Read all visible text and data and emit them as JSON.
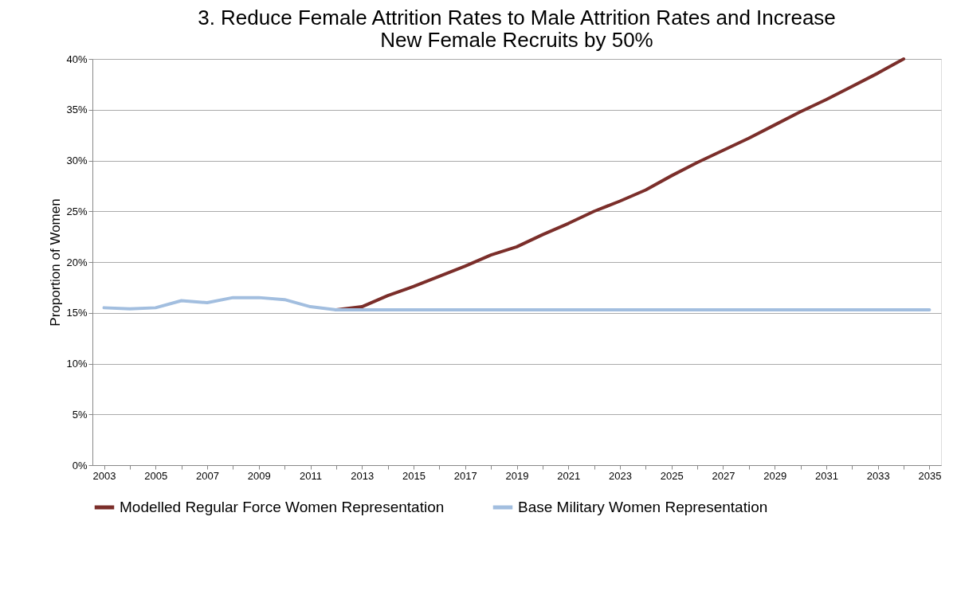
{
  "chart_data": {
    "type": "line",
    "title": "3. Reduce Female Attrition Rates to Male Attrition Rates and Increase\nNew Female Recruits by 50%",
    "ylabel": "Proportion of Women",
    "categories": [
      "2003",
      null,
      "2005",
      null,
      "2007",
      null,
      "2009",
      null,
      "2011",
      null,
      "2013",
      null,
      "2015",
      null,
      "2017",
      null,
      "2019",
      null,
      "2021",
      null,
      "2023",
      null,
      "2025",
      null,
      "2027",
      null,
      "2029",
      null,
      "2031",
      null,
      "2033",
      null,
      "2035"
    ],
    "series": [
      {
        "name": "Modelled Regular Force Women Representation",
        "color": "#7b2e2a",
        "values": [
          null,
          null,
          null,
          null,
          null,
          null,
          null,
          null,
          null,
          15.3,
          15.6,
          16.7,
          17.6,
          18.6,
          19.6,
          20.7,
          21.5,
          22.7,
          23.8,
          25.0,
          26.0,
          27.1,
          28.5,
          29.8,
          31.0,
          32.2,
          33.5,
          34.8,
          36.0,
          37.3,
          38.6,
          40.0,
          null
        ]
      },
      {
        "name": "Base Military Women Representation",
        "color": "#a2bedf",
        "values": [
          15.5,
          15.4,
          15.5,
          16.2,
          16.0,
          16.5,
          16.5,
          16.3,
          15.6,
          15.3,
          15.3,
          15.3,
          15.3,
          15.3,
          15.3,
          15.3,
          15.3,
          15.3,
          15.3,
          15.3,
          15.3,
          15.3,
          15.3,
          15.3,
          15.3,
          15.3,
          15.3,
          15.3,
          15.3,
          15.3,
          15.3,
          15.3,
          15.3
        ]
      }
    ],
    "ylim": [
      0,
      40
    ],
    "yticks": [
      {
        "value": 0,
        "label": "0%"
      },
      {
        "value": 5,
        "label": "5%"
      },
      {
        "value": 10,
        "label": "10%"
      },
      {
        "value": 15,
        "label": "15%"
      },
      {
        "value": 20,
        "label": "20%"
      },
      {
        "value": 25,
        "label": "25%"
      },
      {
        "value": 30,
        "label": "30%"
      },
      {
        "value": 35,
        "label": "35%"
      },
      {
        "value": 40,
        "label": "40%"
      }
    ],
    "grid": "y",
    "legend": "bottom",
    "line_style": "solid",
    "marker": "none"
  }
}
